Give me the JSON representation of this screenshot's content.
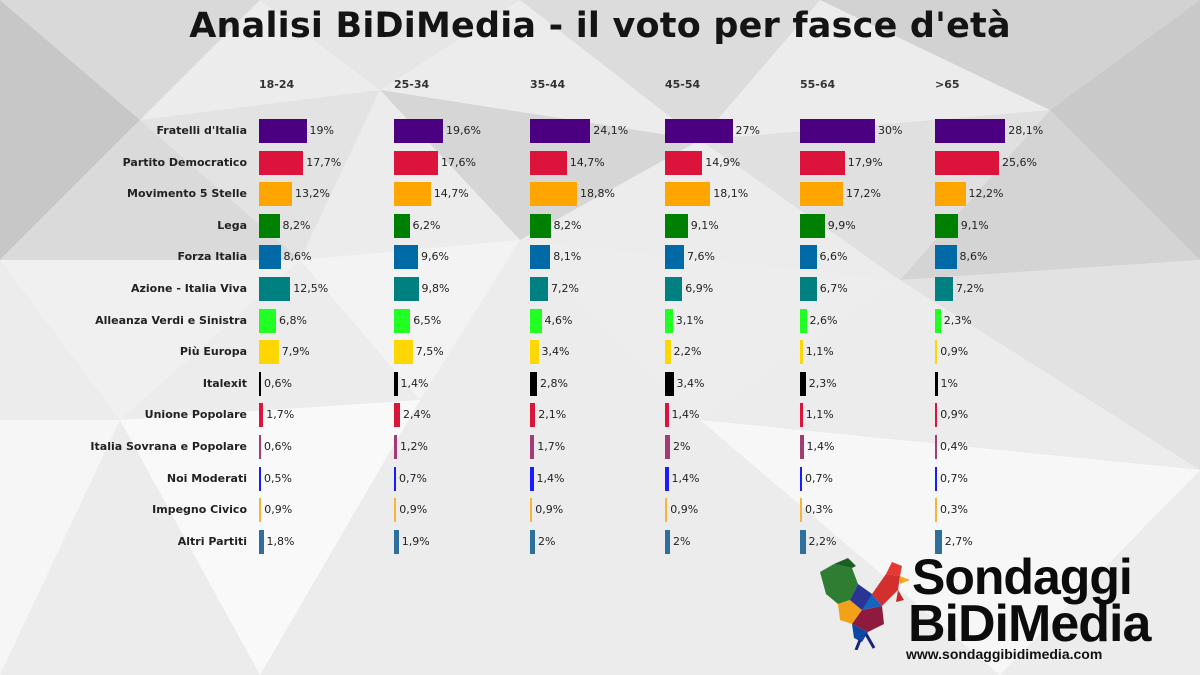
{
  "title": "Analisi BiDiMedia - il voto  per fasce d'età",
  "logo": {
    "line1": "Sondaggi",
    "line2": "BiDiMedia",
    "url": "www.sondaggibidimedia.com"
  },
  "colors": {
    "Fratelli d'Italia": "#4b0082",
    "Partito Democratico": "#dc143c",
    "Movimento 5 Stelle": "#ffa500",
    "Lega": "#008000",
    "Forza Italia": "#006aa7",
    "Azione - Italia Viva": "#008080",
    "Alleanza Verdi e Sinistra": "#22ff22",
    "Più Europa": "#ffd700",
    "Italexit": "#000000",
    "Unione Popolare": "#dc143c",
    "Italia Sovrana e Popolare": "#a13d72",
    "Noi Moderati": "#1a1aff",
    "Impegno Civico": "#f5b631",
    "Altri Partiti": "#2e6f9e"
  },
  "chart_data": {
    "type": "bar",
    "title": "Analisi BiDiMedia - il voto  per fasce d'età",
    "orientation": "horizontal",
    "categories": [
      "Fratelli d'Italia",
      "Partito Democratico",
      "Movimento 5 Stelle",
      "Lega",
      "Forza Italia",
      "Azione - Italia Viva",
      "Alleanza Verdi e Sinistra",
      "Più Europa",
      "Italexit",
      "Unione Popolare",
      "Italia Sovrana e Popolare",
      "Noi Moderati",
      "Impegno Civico",
      "Altri Partiti"
    ],
    "series": [
      {
        "name": "18-24",
        "values": [
          19,
          17.7,
          13.2,
          8.2,
          8.6,
          12.5,
          6.8,
          7.9,
          0.6,
          1.7,
          0.6,
          0.5,
          0.9,
          1.8
        ],
        "labels": [
          "19%",
          "17,7%",
          "13,2%",
          "8,2%",
          "8,6%",
          "12,5%",
          "6,8%",
          "7,9%",
          "0,6%",
          "1,7%",
          "0,6%",
          "0,5%",
          "0,9%",
          "1,8%"
        ]
      },
      {
        "name": "25-34",
        "values": [
          19.6,
          17.6,
          14.7,
          6.2,
          9.6,
          9.8,
          6.5,
          7.5,
          1.4,
          2.4,
          1.2,
          0.7,
          0.9,
          1.9
        ],
        "labels": [
          "19,6%",
          "17,6%",
          "14,7%",
          "6,2%",
          "9,6%",
          "9,8%",
          "6,5%",
          "7,5%",
          "1,4%",
          "2,4%",
          "1,2%",
          "0,7%",
          "0,9%",
          "1,9%"
        ]
      },
      {
        "name": "35-44",
        "values": [
          24.1,
          14.7,
          18.8,
          8.2,
          8.1,
          7.2,
          4.6,
          3.4,
          2.8,
          2.1,
          1.7,
          1.4,
          0.9,
          2
        ],
        "labels": [
          "24,1%",
          "14,7%",
          "18,8%",
          "8,2%",
          "8,1%",
          "7,2%",
          "4,6%",
          "3,4%",
          "2,8%",
          "2,1%",
          "1,7%",
          "1,4%",
          "0,9%",
          "2%"
        ]
      },
      {
        "name": "45-54",
        "values": [
          27,
          14.9,
          18.1,
          9.1,
          7.6,
          6.9,
          3.1,
          2.2,
          3.4,
          1.4,
          2,
          1.4,
          0.9,
          2
        ],
        "labels": [
          "27%",
          "14,9%",
          "18,1%",
          "9,1%",
          "7,6%",
          "6,9%",
          "3,1%",
          "2,2%",
          "3,4%",
          "1,4%",
          "2%",
          "1,4%",
          "0,9%",
          "2%"
        ]
      },
      {
        "name": "55-64",
        "values": [
          30,
          17.9,
          17.2,
          9.9,
          6.6,
          6.7,
          2.6,
          1.1,
          2.3,
          1.1,
          1.4,
          0.7,
          0.3,
          2.2
        ],
        "labels": [
          "30%",
          "17,9%",
          "17,2%",
          "9,9%",
          "6,6%",
          "6,7%",
          "2,6%",
          "1,1%",
          "2,3%",
          "1,1%",
          "1,4%",
          "0,7%",
          "0,3%",
          "2,2%"
        ]
      },
      {
        "name": ">65",
        "values": [
          28.1,
          25.6,
          12.2,
          9.1,
          8.6,
          7.2,
          2.3,
          0.9,
          1,
          0.9,
          0.4,
          0.7,
          0.3,
          2.7
        ],
        "labels": [
          "28,1%",
          "25,6%",
          "12,2%",
          "9,1%",
          "8,6%",
          "7,2%",
          "2,3%",
          "0,9%",
          "1%",
          "0,9%",
          "0,4%",
          "0,7%",
          "0,3%",
          "2,7%"
        ]
      }
    ],
    "grid": false,
    "legend": "none"
  }
}
